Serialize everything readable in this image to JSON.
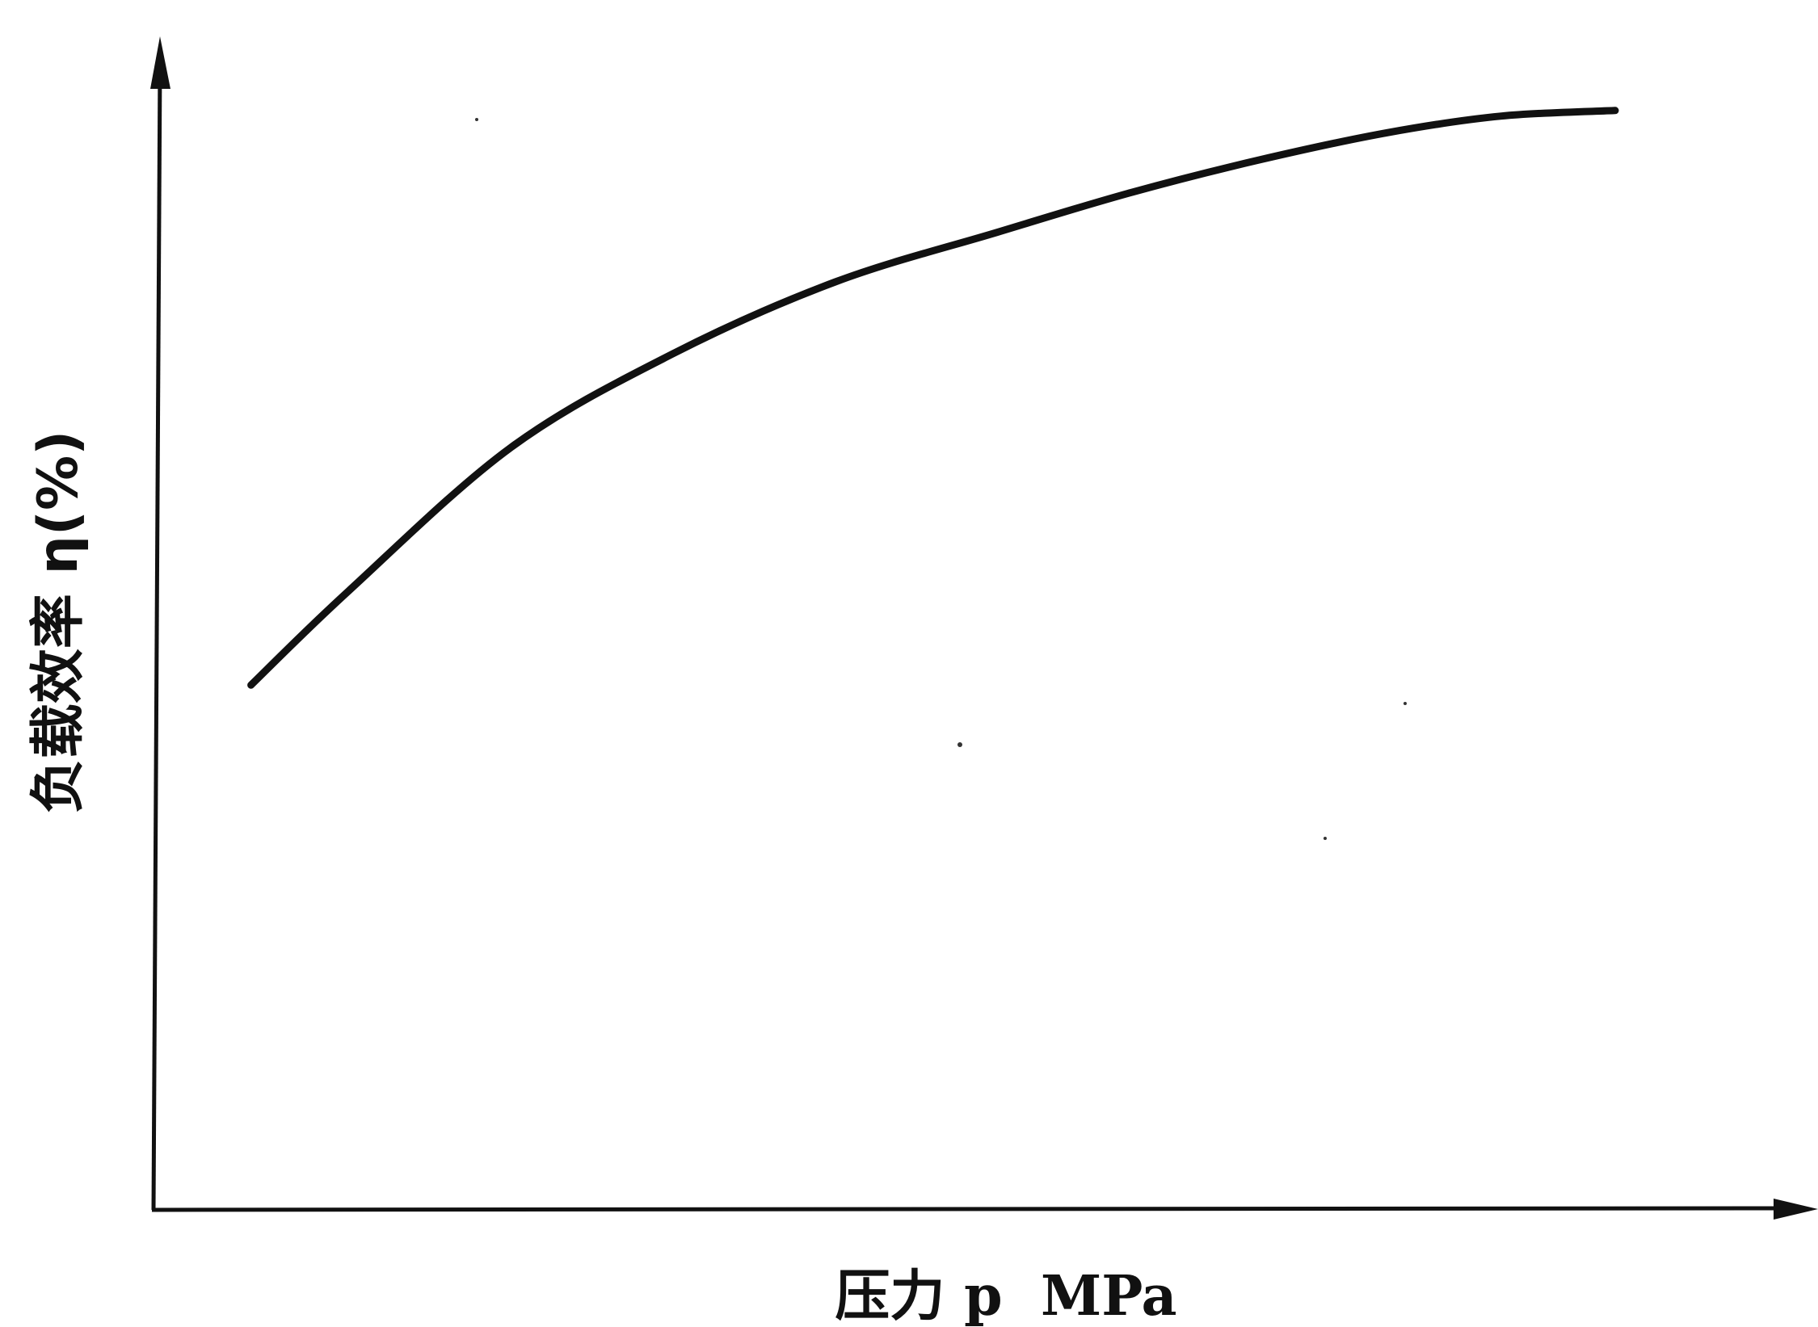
{
  "chart_data": {
    "type": "line",
    "title": "",
    "xlabel": "压力 p  MPa",
    "ylabel": "负载效率 η(%)",
    "x_ticks": [],
    "y_ticks": [],
    "grid": false,
    "legend": "none",
    "xlim": [
      0,
      100
    ],
    "ylim": [
      0,
      100
    ],
    "series": [
      {
        "x": [
          6,
          12,
          22,
          32,
          42,
          52,
          60,
          68,
          76,
          83,
          90
        ],
        "y": [
          47.5,
          56,
          69,
          77.5,
          84,
          88.5,
          92,
          95,
          97.5,
          99,
          99.5
        ]
      }
    ]
  }
}
